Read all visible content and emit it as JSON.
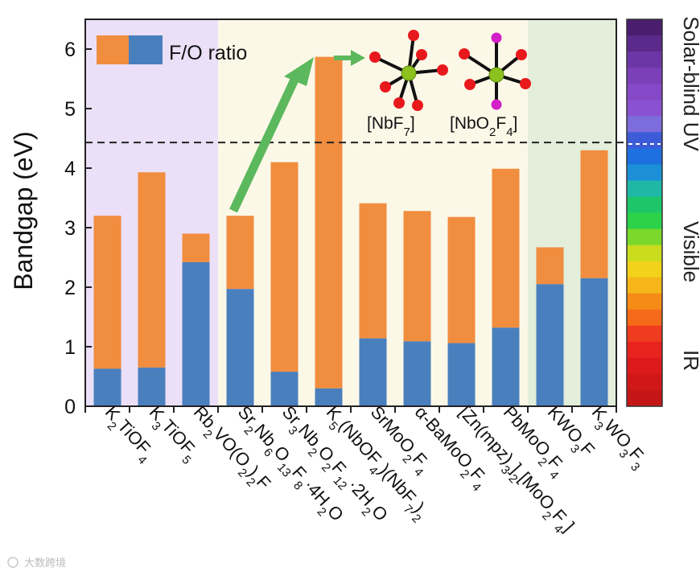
{
  "chart_data": {
    "type": "bar",
    "stacked": true,
    "title": "",
    "xlabel": "",
    "ylabel": "Bandgap (eV)",
    "ylim": [
      0,
      6.5
    ],
    "yticks": [
      0,
      1,
      2,
      3,
      4,
      5,
      6
    ],
    "categories": [
      {
        "id": "K2TiOF4",
        "parts": [
          [
            "K",
            ""
          ],
          [
            "2",
            "sub"
          ],
          [
            "TiOF",
            ""
          ],
          [
            "4",
            "sub"
          ]
        ]
      },
      {
        "id": "K3TiOF5",
        "parts": [
          [
            "K",
            ""
          ],
          [
            "3",
            "sub"
          ],
          [
            "TiOF",
            ""
          ],
          [
            "5",
            "sub"
          ]
        ]
      },
      {
        "id": "Rb2VO(O2)2F",
        "parts": [
          [
            "Rb",
            ""
          ],
          [
            "2",
            "sub"
          ],
          [
            "VO(O",
            ""
          ],
          [
            "2",
            "sub"
          ],
          [
            ")",
            ""
          ],
          [
            "2",
            "sub"
          ],
          [
            "F",
            ""
          ]
        ]
      },
      {
        "id": "Sr2Nb6O13F8·4H2O",
        "parts": [
          [
            "Sr",
            ""
          ],
          [
            "2",
            "sub"
          ],
          [
            "Nb",
            ""
          ],
          [
            "6",
            "sub"
          ],
          [
            "O",
            ""
          ],
          [
            "13",
            "sub"
          ],
          [
            "F",
            ""
          ],
          [
            "8",
            "sub"
          ],
          [
            "·4H",
            ""
          ],
          [
            "2",
            "sub"
          ],
          [
            "O",
            ""
          ]
        ]
      },
      {
        "id": "Sr3Nb2O2F12·2H2O",
        "parts": [
          [
            "Sr",
            ""
          ],
          [
            "3",
            "sub"
          ],
          [
            "Nb",
            ""
          ],
          [
            "2",
            "sub"
          ],
          [
            "O",
            ""
          ],
          [
            "2",
            "sub"
          ],
          [
            "F",
            ""
          ],
          [
            "12",
            "sub"
          ],
          [
            "·2H",
            ""
          ],
          [
            "2",
            "sub"
          ],
          [
            "O",
            ""
          ]
        ]
      },
      {
        "id": "K5(NbOF4)(NbF7)2",
        "parts": [
          [
            "K",
            ""
          ],
          [
            "5",
            "sub"
          ],
          [
            "(NbOF",
            ""
          ],
          [
            "4",
            "sub"
          ],
          [
            ")(NbF",
            ""
          ],
          [
            "7",
            "sub"
          ],
          [
            ")",
            ""
          ],
          [
            "2",
            "sub"
          ]
        ]
      },
      {
        "id": "SrMoO2F4",
        "parts": [
          [
            "SrMoO",
            ""
          ],
          [
            "2",
            "sub"
          ],
          [
            "F",
            ""
          ],
          [
            "4",
            "sub"
          ]
        ]
      },
      {
        "id": "α-BaMoO2F4",
        "parts": [
          [
            "α-BaMoO",
            ""
          ],
          [
            "2",
            "sub"
          ],
          [
            "F",
            ""
          ],
          [
            "4",
            "sub"
          ]
        ]
      },
      {
        "id": "[Zn(mpz)3]2[MoO2F4]",
        "parts": [
          [
            "[Zn(mpz)",
            ""
          ],
          [
            "3",
            "sub"
          ],
          [
            "]",
            ""
          ],
          [
            "2",
            "sub"
          ],
          [
            "[MoO",
            ""
          ],
          [
            "2",
            "sub"
          ],
          [
            "F",
            ""
          ],
          [
            "4",
            "sub"
          ],
          [
            "]",
            ""
          ]
        ]
      },
      {
        "id": "PbMoO2F4",
        "parts": [
          [
            "PbMoO",
            ""
          ],
          [
            "2",
            "sub"
          ],
          [
            "F",
            ""
          ],
          [
            "4",
            "sub"
          ]
        ]
      },
      {
        "id": "KWO3F",
        "parts": [
          [
            "KWO",
            ""
          ],
          [
            "3",
            "sub"
          ],
          [
            "F",
            ""
          ]
        ]
      },
      {
        "id": "K3WO3F3",
        "parts": [
          [
            "K",
            ""
          ],
          [
            "3",
            "sub"
          ],
          [
            "WO",
            ""
          ],
          [
            "3",
            "sub"
          ],
          [
            "F",
            ""
          ],
          [
            "3",
            "sub"
          ]
        ]
      }
    ],
    "series": [
      {
        "name": "F/O ratio",
        "color": "#4a7fbd",
        "values": [
          0.63,
          0.65,
          2.42,
          1.97,
          0.58,
          0.3,
          1.14,
          1.09,
          1.06,
          1.32,
          2.05,
          2.15
        ]
      },
      {
        "name": "Bandgap",
        "color": "#f18d3f",
        "totals": [
          3.2,
          3.93,
          2.9,
          3.2,
          4.1,
          5.87,
          3.41,
          3.28,
          3.18,
          3.99,
          2.67,
          4.3
        ]
      }
    ],
    "legend": {
      "label": "F/O ratio",
      "position": "top-left"
    },
    "reference_line": {
      "y": 4.43,
      "style": "dashed"
    },
    "regions": [
      {
        "from_category": 0,
        "to_category": 2,
        "color": "#ebe0f7"
      },
      {
        "from_category": 3,
        "to_category": 9,
        "color": "#fcf8e8"
      },
      {
        "from_category": 10,
        "to_category": 11,
        "color": "#e3eedb"
      }
    ],
    "spectrum_bar": {
      "labels": [
        "Solar-blind UV",
        "Visible",
        "IR"
      ],
      "colors": [
        "#4a1d6e",
        "#5b2a8a",
        "#6d36a6",
        "#7b3fb8",
        "#8549c7",
        "#8a52d2",
        "#7c6cdc",
        "#3c5bd8",
        "#1e6fe0",
        "#1b8fd8",
        "#1fb7a6",
        "#1ec66a",
        "#2cd34a",
        "#7ad92a",
        "#c9dc1e",
        "#f2d21a",
        "#f6b519",
        "#f68b16",
        "#f56a19",
        "#ef3b1f",
        "#e8221d",
        "#dc1a1c",
        "#d01818",
        "#c41616"
      ]
    },
    "annotations": {
      "molecules": [
        {
          "id": "NbF7",
          "parts": [
            [
              "[NbF",
              ""
            ],
            [
              "7",
              "sub"
            ],
            [
              "]",
              ""
            ]
          ],
          "ligands": "F",
          "center_color": "#8cc11e",
          "ligand_color": "#e8191c"
        },
        {
          "id": "NbO2F4",
          "parts": [
            [
              "[NbO",
              ""
            ],
            [
              "2",
              "sub"
            ],
            [
              "F",
              ""
            ],
            [
              "4",
              "sub"
            ],
            [
              "]",
              ""
            ]
          ],
          "ligands": "O2F4",
          "center_color": "#8cc11e",
          "ligand_color": "#e8191c",
          "apical_color": "#d21fc6"
        }
      ],
      "arrow_color": "#5cb85c"
    },
    "watermark": "大数跨境"
  }
}
